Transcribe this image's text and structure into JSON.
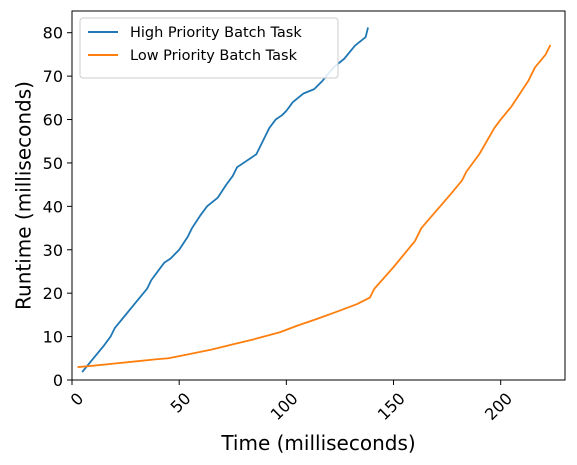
{
  "chart_data": {
    "type": "line",
    "title": "",
    "xlabel": "Time (milliseconds)",
    "ylabel": "Runtime (milliseconds)",
    "xlim": [
      0,
      230
    ],
    "ylim": [
      0,
      85
    ],
    "xticks": [
      0,
      50,
      100,
      150,
      200
    ],
    "yticks": [
      0,
      10,
      20,
      30,
      40,
      50,
      60,
      70,
      80
    ],
    "x_tick_rotation": 45,
    "grid": false,
    "legend_position": "top-left",
    "series": [
      {
        "name": "High Priority Batch Task",
        "color": "#1f77b4",
        "x": [
          5,
          10,
          15,
          18,
          20,
          25,
          30,
          35,
          37,
          40,
          43,
          46,
          50,
          54,
          56,
          60,
          63,
          68,
          72,
          75,
          77,
          80,
          83,
          86,
          89,
          92,
          95,
          98,
          100,
          103,
          108,
          113,
          117,
          122,
          127,
          132,
          137,
          138
        ],
        "y": [
          2,
          5,
          8,
          10,
          12,
          15,
          18,
          21,
          23,
          25,
          27,
          28,
          30,
          33,
          35,
          38,
          40,
          42,
          45,
          47,
          49,
          50,
          51,
          52,
          55,
          58,
          60,
          61,
          62,
          64,
          66,
          67,
          69,
          72,
          74,
          77,
          79,
          81
        ]
      },
      {
        "name": "Low Priority Batch Task",
        "color": "#ff7f0e",
        "x": [
          3,
          10,
          20,
          30,
          40,
          45,
          55,
          65,
          75,
          85,
          97,
          105,
          115,
          125,
          133,
          139,
          141,
          150,
          160,
          163,
          170,
          177,
          182,
          184,
          190,
          197,
          200,
          205,
          213,
          216,
          221,
          223
        ],
        "y": [
          3,
          3.3,
          3.8,
          4.3,
          4.8,
          5,
          6,
          7,
          8.2,
          9.4,
          11,
          12.5,
          14.2,
          16,
          17.5,
          19,
          21,
          26,
          32,
          35,
          39,
          43,
          46,
          48,
          52,
          58,
          60,
          63,
          69,
          72,
          75,
          77
        ]
      }
    ]
  }
}
